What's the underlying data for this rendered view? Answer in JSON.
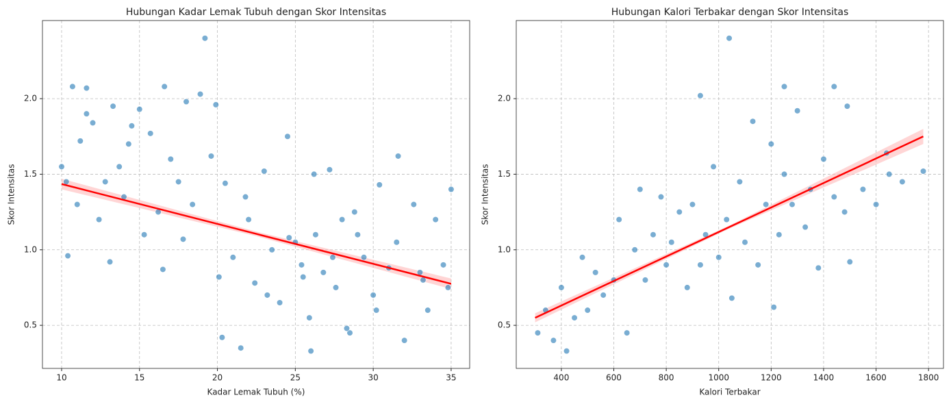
{
  "chart_data": [
    {
      "type": "scatter",
      "title": "Hubungan Kadar Lemak Tubuh dengan Skor Intensitas",
      "x_label": "Kadar Lemak Tubuh (%)",
      "y_label": "Skor Intensitas",
      "color": "#1f77b4",
      "x": [
        10,
        10.3,
        10.7,
        11,
        11.2,
        11.6,
        12,
        12.4,
        12.8,
        13.3,
        13.7,
        14,
        14.5,
        15,
        15.3,
        15.7,
        16.2,
        16.6,
        17,
        17.5,
        18,
        18.4,
        18.9,
        19.2,
        19.6,
        19.9,
        10.4,
        11.6,
        13.1,
        14.3,
        16.5,
        17.8,
        20.1,
        20.5,
        21,
        21.5,
        22,
        22.4,
        23,
        23.5,
        24,
        24.5,
        25,
        25.4,
        25.9,
        26.3,
        26.8,
        27.2,
        27.6,
        28,
        28.5,
        29,
        29.4,
        30,
        30.4,
        31,
        31.5,
        32,
        32.6,
        33,
        33.5,
        34,
        34.5,
        35,
        20.3,
        21.8,
        23.2,
        24.6,
        26,
        27.4,
        28.8,
        30.2,
        31.6,
        33.2,
        34.8,
        26.2,
        25.5,
        28.3
      ],
      "values": [
        1.55,
        1.45,
        2.08,
        1.3,
        1.72,
        1.9,
        1.84,
        1.2,
        1.45,
        1.95,
        1.55,
        1.35,
        1.82,
        1.93,
        1.1,
        1.77,
        1.25,
        2.08,
        1.6,
        1.45,
        1.98,
        1.3,
        2.03,
        2.4,
        1.62,
        1.96,
        0.96,
        2.07,
        0.92,
        1.7,
        0.87,
        1.07,
        0.82,
        1.44,
        0.95,
        0.35,
        1.2,
        0.78,
        1.52,
        1.0,
        0.65,
        1.75,
        1.05,
        0.9,
        0.55,
        1.1,
        0.85,
        1.53,
        0.75,
        1.2,
        0.45,
        1.1,
        0.95,
        0.7,
        1.43,
        0.88,
        1.05,
        0.4,
        1.3,
        0.85,
        0.6,
        1.2,
        0.9,
        1.4,
        0.42,
        1.35,
        0.7,
        1.08,
        0.33,
        0.95,
        1.25,
        0.6,
        1.62,
        0.8,
        0.75,
        1.5,
        0.82,
        0.48
      ],
      "regression": {
        "color": "#ff0000",
        "band_color": "#ffb3b3",
        "x": [
          10,
          22.5,
          35
        ],
        "values": [
          1.435,
          1.105,
          0.775
        ],
        "ci_lower": [
          1.4,
          1.09,
          0.74
        ],
        "ci_upper": [
          1.47,
          1.12,
          0.81
        ]
      },
      "xlim": [
        8.77,
        36.19
      ],
      "ylim": [
        0.215,
        2.517
      ],
      "xticks": [
        10,
        15,
        20,
        25,
        30,
        35
      ],
      "yticks": [
        0.5,
        {
          "value": 1,
          "label": "1.0"
        },
        1.5,
        {
          "value": 2,
          "label": "2.0"
        }
      ],
      "grid": true
    },
    {
      "type": "scatter",
      "title": "Hubungan Kalori Terbakar dengan Skor Intensitas",
      "x_label": "Kalori Terbakar",
      "y_label": "Skor Intensitas",
      "color": "#1f77b4",
      "x": [
        310,
        340,
        370,
        400,
        420,
        450,
        480,
        500,
        530,
        560,
        600,
        620,
        650,
        680,
        700,
        720,
        750,
        780,
        800,
        820,
        850,
        880,
        900,
        930,
        950,
        980,
        1000,
        1030,
        1050,
        1080,
        1100,
        1130,
        1150,
        1180,
        1200,
        1230,
        1250,
        1280,
        1300,
        1330,
        1350,
        1380,
        1400,
        1440,
        1480,
        1500,
        1550,
        1600,
        1650,
        1700,
        1780,
        1040,
        930,
        1250,
        1490,
        1440,
        1640,
        1210
      ],
      "values": [
        0.45,
        0.6,
        0.4,
        0.75,
        0.33,
        0.55,
        0.95,
        0.6,
        0.85,
        0.7,
        0.8,
        1.2,
        0.45,
        1.0,
        1.4,
        0.8,
        1.1,
        1.35,
        0.9,
        1.05,
        1.25,
        0.75,
        1.3,
        0.9,
        1.1,
        1.55,
        0.95,
        1.2,
        0.68,
        1.45,
        1.05,
        1.85,
        0.9,
        1.3,
        1.7,
        1.1,
        1.5,
        1.3,
        1.92,
        1.15,
        1.4,
        0.88,
        1.6,
        1.35,
        1.25,
        0.92,
        1.4,
        1.3,
        1.5,
        1.45,
        1.52,
        2.4,
        2.02,
        2.08,
        1.95,
        2.08,
        1.64,
        0.62
      ],
      "regression": {
        "color": "#ff0000",
        "band_color": "#ffb3b3",
        "x": [
          300,
          1040,
          1780
        ],
        "values": [
          0.55,
          1.15,
          1.75
        ],
        "ci_lower": [
          0.52,
          1.14,
          1.7
        ],
        "ci_upper": [
          0.58,
          1.16,
          1.8
        ]
      },
      "xlim": [
        228,
        1857
      ],
      "ylim": [
        0.215,
        2.517
      ],
      "xticks": [
        400,
        600,
        800,
        1000,
        1200,
        1400,
        1600,
        1800
      ],
      "yticks": [
        0.5,
        {
          "value": 1,
          "label": "1.0"
        },
        1.5,
        {
          "value": 2,
          "label": "2.0"
        }
      ],
      "grid": true
    }
  ]
}
